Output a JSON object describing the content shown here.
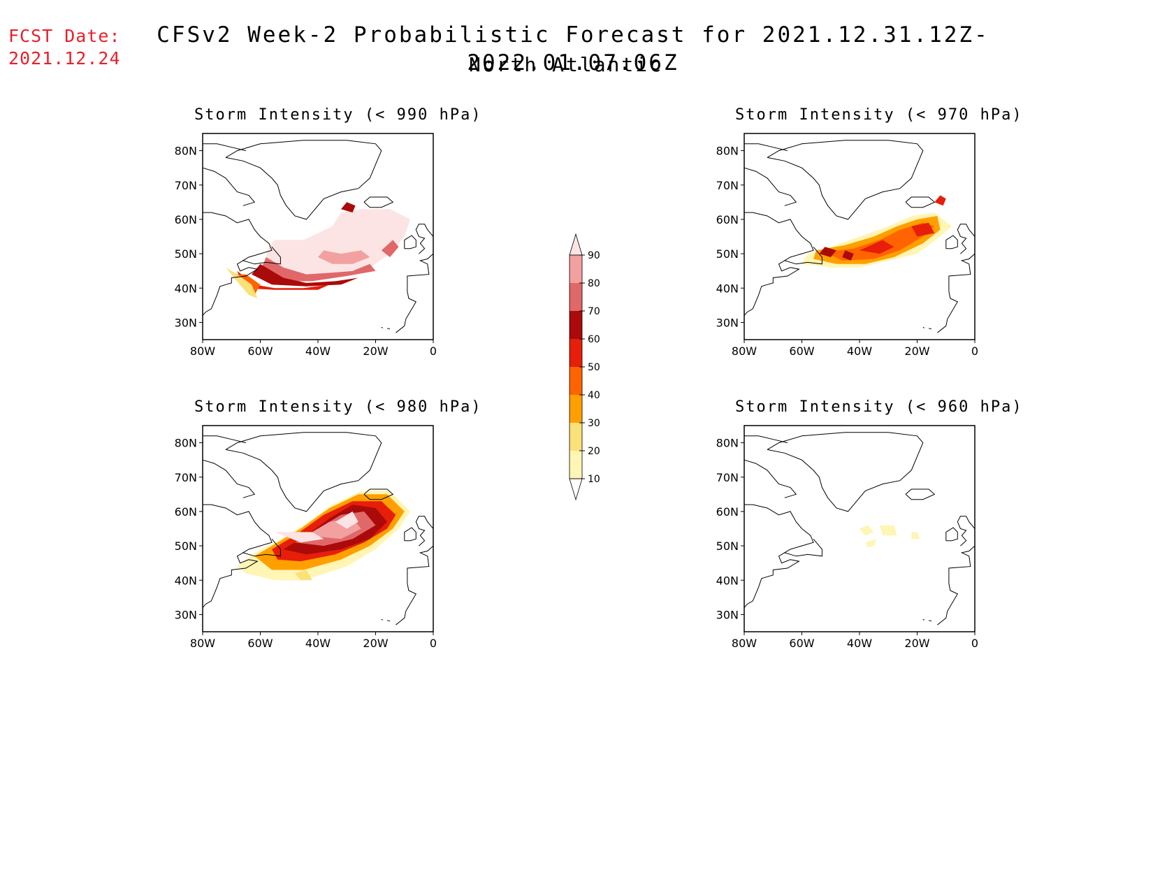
{
  "header": {
    "fcst_label": "FCST Date:",
    "fcst_date": "2021.12.24",
    "title": "CFSv2 Week-2 Probabilistic Forecast for 2021.12.31.12Z-2022.01.07.06Z",
    "region": "North Atlantic"
  },
  "axes": {
    "lat_labels": [
      "80N",
      "70N",
      "60N",
      "50N",
      "40N",
      "30N"
    ],
    "lon_labels": [
      "80W",
      "60W",
      "40W",
      "20W",
      "0"
    ]
  },
  "panels": [
    {
      "title": "Storm Intensity (< 990 hPa)"
    },
    {
      "title": "Storm Intensity (< 970 hPa)"
    },
    {
      "title": "Storm Intensity (< 980 hPa)"
    },
    {
      "title": "Storm Intensity (< 960 hPa)"
    }
  ],
  "legend": {
    "labels": [
      "90",
      "80",
      "70",
      "60",
      "50",
      "40",
      "30",
      "20",
      "10"
    ],
    "colors": [
      "#fce4e4",
      "#f2a0a0",
      "#e06868",
      "#aa0a0a",
      "#e61e0a",
      "#ff6400",
      "#ffa000",
      "#fae178",
      "#fff5b4"
    ]
  }
}
